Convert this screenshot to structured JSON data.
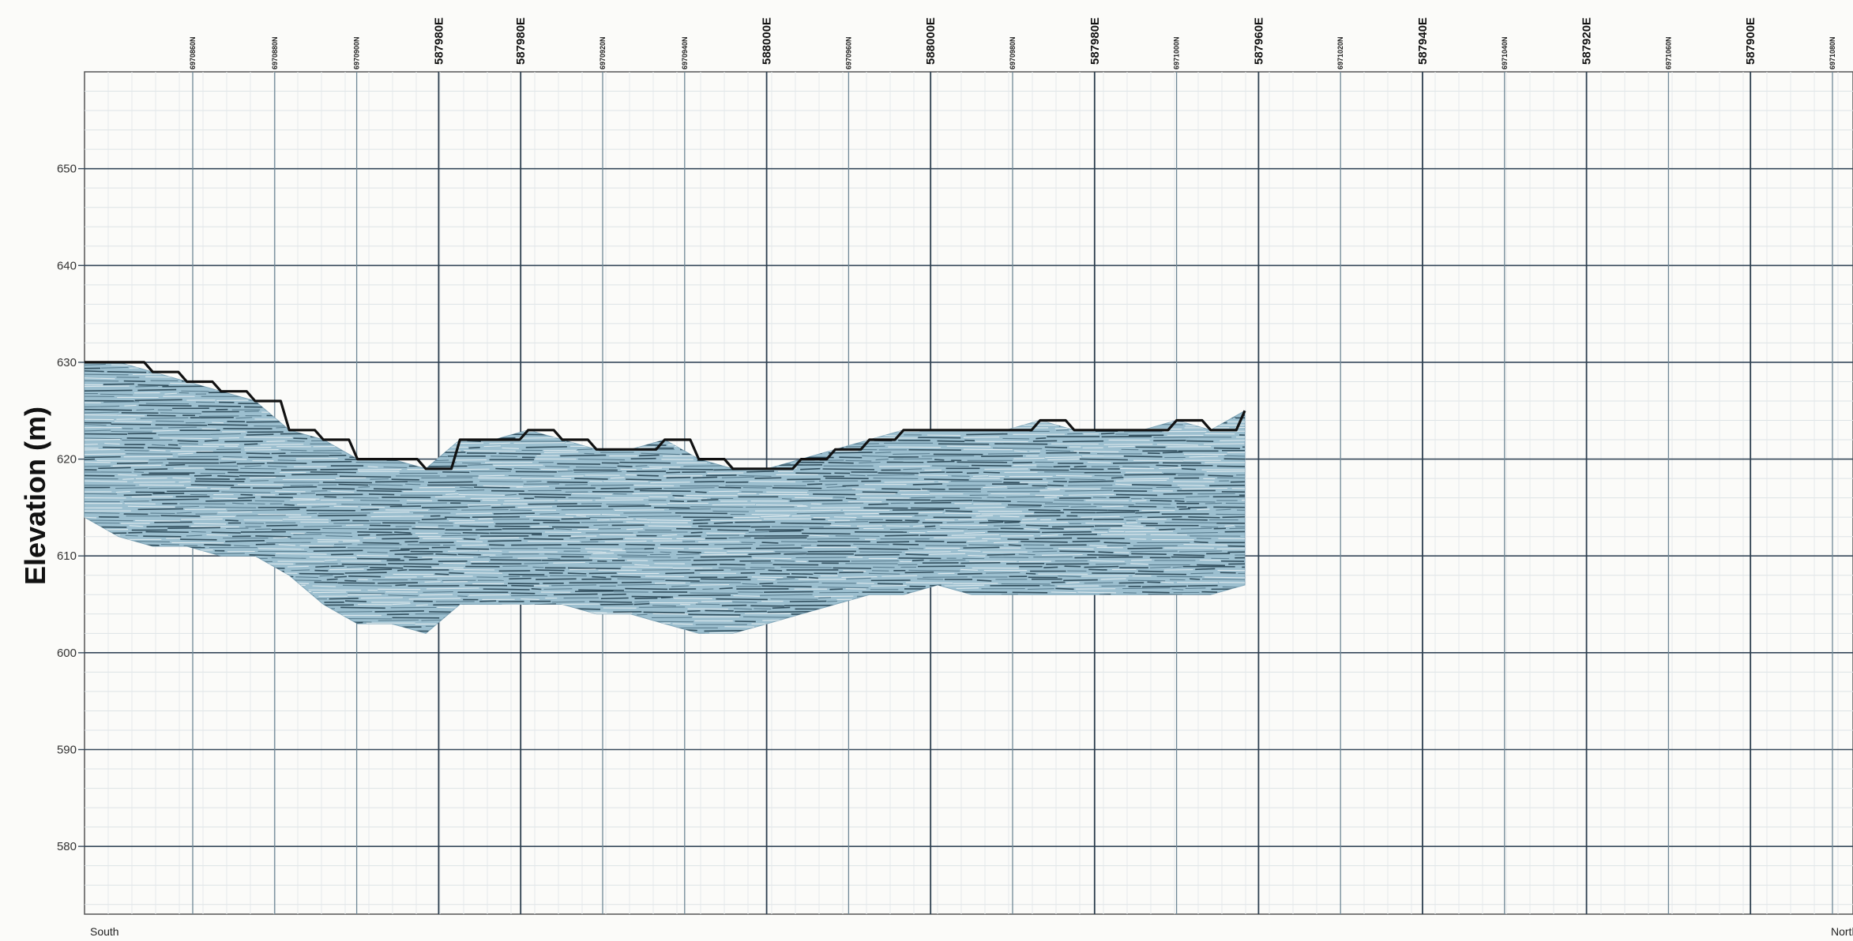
{
  "chart_data": {
    "type": "area",
    "title": "",
    "ylabel": "Elevation (m)",
    "ylim": [
      573,
      660
    ],
    "yticks": [
      580,
      590,
      600,
      610,
      620,
      630,
      640,
      650
    ],
    "grid": true,
    "left_direction": "South",
    "right_direction": "North",
    "top_labels": [
      {
        "kind": "northing",
        "text": "6970860N"
      },
      {
        "kind": "northing",
        "text": "6970880N"
      },
      {
        "kind": "northing",
        "text": "6970900N"
      },
      {
        "kind": "easting",
        "text": "587980E"
      },
      {
        "kind": "easting",
        "text": "587980E"
      },
      {
        "kind": "northing",
        "text": "6970920N"
      },
      {
        "kind": "northing",
        "text": "6970940N"
      },
      {
        "kind": "easting",
        "text": "588000E"
      },
      {
        "kind": "northing",
        "text": "6970960N"
      },
      {
        "kind": "easting",
        "text": "588000E"
      },
      {
        "kind": "northing",
        "text": "6970980N"
      },
      {
        "kind": "easting",
        "text": "587980E"
      },
      {
        "kind": "northing",
        "text": "6971000N"
      },
      {
        "kind": "easting",
        "text": "587960E"
      },
      {
        "kind": "northing",
        "text": "6971020N"
      },
      {
        "kind": "easting",
        "text": "587940E"
      },
      {
        "kind": "northing",
        "text": "6971040N"
      },
      {
        "kind": "easting",
        "text": "587920E"
      },
      {
        "kind": "northing",
        "text": "6971060N"
      },
      {
        "kind": "easting",
        "text": "587900E"
      },
      {
        "kind": "northing",
        "text": "6971080N"
      }
    ],
    "series": [
      {
        "color": "#9cbfcf",
        "surface_elevation": [
          630,
          630,
          629,
          628,
          627,
          626,
          623,
          622,
          620,
          620,
          619,
          622,
          622,
          623,
          622,
          621,
          621,
          622,
          620,
          619,
          619,
          620,
          621,
          622,
          623,
          623,
          623,
          623,
          624,
          623,
          623,
          623,
          624,
          623,
          625
        ],
        "base_elevation": [
          614,
          612,
          611,
          611,
          610,
          610,
          608,
          605,
          603,
          603,
          602,
          605,
          605,
          605,
          605,
          604,
          604,
          603,
          602,
          602,
          603,
          604,
          605,
          606,
          606,
          607,
          606,
          606,
          606,
          606,
          606,
          606,
          606,
          606,
          607
        ]
      }
    ]
  }
}
